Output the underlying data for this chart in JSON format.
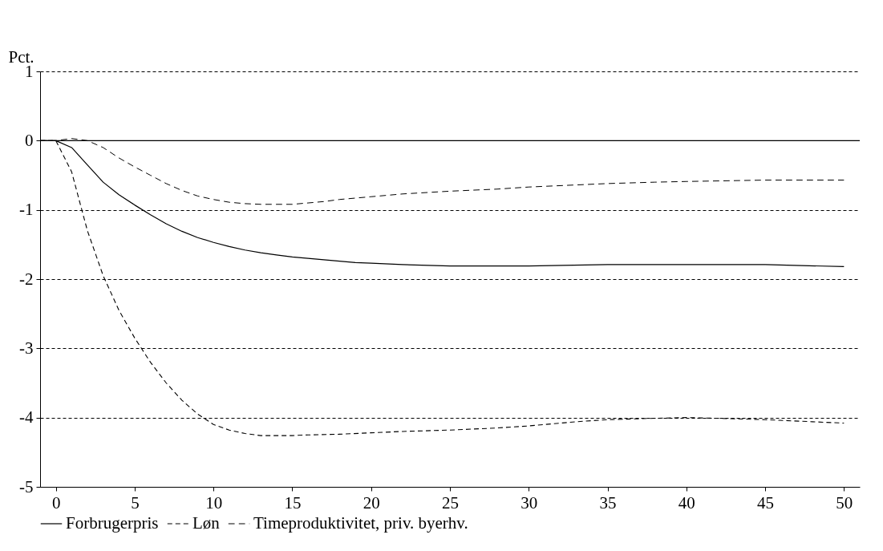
{
  "chart_data": {
    "type": "line",
    "ylabel": "Pct.",
    "xlim": [
      -1,
      51
    ],
    "xticks": [
      0,
      5,
      10,
      15,
      20,
      25,
      30,
      35,
      40,
      45,
      50
    ],
    "ylim": [
      -5,
      1
    ],
    "yticks": [
      -5,
      -4,
      -3,
      -2,
      -1,
      0,
      1
    ],
    "grid": "y",
    "legend": "bottom",
    "ref_lines": [
      {
        "axis": "y",
        "value": 0,
        "line_style": "solid"
      }
    ],
    "series": [
      {
        "name": "Forbrugerpris",
        "color": "#000000",
        "line_style": "solid",
        "x": [
          -1,
          0,
          1,
          2,
          3,
          4,
          5,
          6,
          7,
          8,
          9,
          10,
          11,
          12,
          13,
          14,
          15,
          16,
          17,
          18,
          19,
          20,
          22,
          25,
          30,
          35,
          40,
          45,
          50
        ],
        "values": [
          0,
          0,
          -0.1,
          -0.35,
          -0.6,
          -0.78,
          -0.93,
          -1.07,
          -1.2,
          -1.31,
          -1.4,
          -1.47,
          -1.53,
          -1.58,
          -1.62,
          -1.65,
          -1.68,
          -1.7,
          -1.72,
          -1.74,
          -1.76,
          -1.77,
          -1.79,
          -1.81,
          -1.81,
          -1.79,
          -1.79,
          -1.79,
          -1.82
        ]
      },
      {
        "name": "Løn",
        "color": "#000000",
        "line_style": "dashed",
        "x": [
          -1,
          0,
          1,
          2,
          3,
          4,
          5,
          6,
          7,
          8,
          9,
          10,
          11,
          12,
          13,
          14,
          15,
          16,
          18,
          20,
          22,
          25,
          28,
          30,
          33,
          35,
          38,
          40,
          42,
          45,
          48,
          50
        ],
        "values": [
          0,
          0,
          -0.45,
          -1.3,
          -1.95,
          -2.45,
          -2.85,
          -3.2,
          -3.5,
          -3.75,
          -3.95,
          -4.1,
          -4.18,
          -4.23,
          -4.26,
          -4.26,
          -4.26,
          -4.25,
          -4.24,
          -4.22,
          -4.2,
          -4.18,
          -4.15,
          -4.12,
          -4.06,
          -4.03,
          -4.01,
          -4.0,
          -4.01,
          -4.03,
          -4.06,
          -4.08
        ]
      },
      {
        "name": "Timeproduktivitet, priv. byerhv.",
        "color": "#000000",
        "line_style": "dashed",
        "x": [
          -1,
          0,
          1,
          2,
          3,
          4,
          5,
          6,
          7,
          8,
          9,
          10,
          11,
          12,
          13,
          14,
          15,
          16,
          17,
          18,
          20,
          22,
          25,
          28,
          30,
          33,
          35,
          38,
          40,
          45,
          50
        ],
        "values": [
          0,
          0,
          0.03,
          0,
          -0.1,
          -0.25,
          -0.38,
          -0.5,
          -0.62,
          -0.72,
          -0.8,
          -0.85,
          -0.89,
          -0.91,
          -0.92,
          -0.92,
          -0.92,
          -0.9,
          -0.88,
          -0.85,
          -0.81,
          -0.77,
          -0.73,
          -0.7,
          -0.67,
          -0.64,
          -0.62,
          -0.6,
          -0.59,
          -0.57,
          -0.57
        ]
      }
    ]
  }
}
